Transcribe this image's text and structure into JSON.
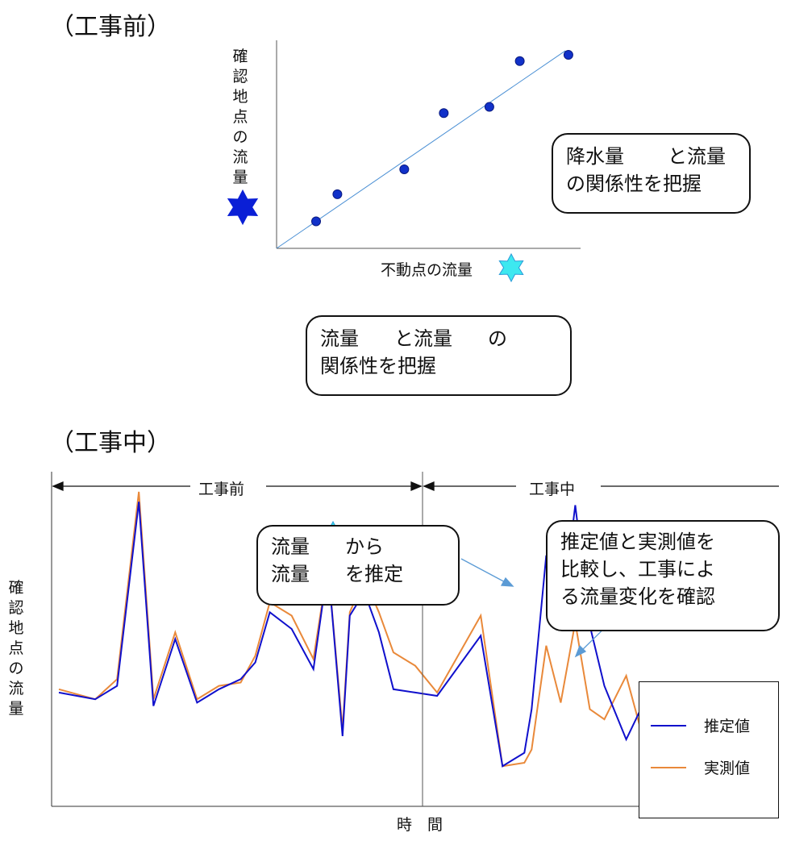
{
  "before": {
    "title": "（工事前）",
    "ylabel": [
      "確",
      "認",
      "地",
      "点",
      "の",
      "流",
      "量"
    ],
    "xlabel": "不動点の流量",
    "callout_rainfall": [
      "降水量",
      "と流量",
      "の関係性を把握"
    ],
    "callout_flow": [
      "流量",
      "と流量",
      "の",
      "関係性を把握"
    ]
  },
  "during": {
    "title": "（工事中）",
    "ylabel": [
      "確",
      "認",
      "地",
      "点",
      "の",
      "流",
      "量"
    ],
    "xlabel": "時　間",
    "period_before": "工事前",
    "period_during": "工事中",
    "callout_estimate": [
      "流量",
      "から",
      "流量",
      "を推定"
    ],
    "callout_compare": [
      "推定値と実測値を",
      "比較し、工事によ",
      "る流量変化を確認"
    ]
  },
  "colors": {
    "estimate": "#1010cc",
    "measured": "#e9893a",
    "star_fixed": "#3de8f0",
    "star_site": "#0a1fd6",
    "rain": "#1aa7e0",
    "fit": "#4a8fd4",
    "point": "#1131c9",
    "arrow": "#5b9bd5"
  },
  "chart_data": [
    {
      "type": "scatter",
      "x": [
        0.13,
        0.2,
        0.42,
        0.55,
        0.7,
        0.8,
        0.96
      ],
      "y": [
        0.13,
        0.26,
        0.38,
        0.65,
        0.68,
        0.9,
        0.93
      ],
      "xlim": [
        0,
        1
      ],
      "ylim": [
        0,
        1
      ],
      "trendline": [
        [
          0,
          0
        ],
        [
          0.95,
          0.95
        ]
      ]
    },
    {
      "type": "line",
      "series": [
        {
          "name": "推定値",
          "values": [
            [
              0.01,
              0.34
            ],
            [
              0.06,
              0.32
            ],
            [
              0.09,
              0.36
            ],
            [
              0.12,
              0.91
            ],
            [
              0.14,
              0.3
            ],
            [
              0.17,
              0.5
            ],
            [
              0.2,
              0.31
            ],
            [
              0.23,
              0.35
            ],
            [
              0.26,
              0.38
            ],
            [
              0.28,
              0.43
            ],
            [
              0.3,
              0.58
            ],
            [
              0.33,
              0.53
            ],
            [
              0.36,
              0.41
            ],
            [
              0.38,
              0.72
            ],
            [
              0.4,
              0.21
            ],
            [
              0.41,
              0.57
            ],
            [
              0.43,
              0.64
            ],
            [
              0.45,
              0.52
            ],
            [
              0.47,
              0.35
            ],
            [
              0.5,
              0.34
            ],
            [
              0.53,
              0.33
            ],
            [
              0.59,
              0.51
            ],
            [
              0.62,
              0.12
            ],
            [
              0.65,
              0.16
            ],
            [
              0.66,
              0.29
            ],
            [
              0.68,
              0.75
            ],
            [
              0.7,
              0.54
            ],
            [
              0.72,
              0.9
            ],
            [
              0.74,
              0.54
            ],
            [
              0.76,
              0.36
            ],
            [
              0.79,
              0.2
            ],
            [
              0.81,
              0.29
            ],
            [
              0.83,
              0.26
            ],
            [
              0.86,
              0.21
            ]
          ]
        },
        {
          "name": "実測値",
          "values": [
            [
              0.01,
              0.35
            ],
            [
              0.06,
              0.32
            ],
            [
              0.09,
              0.38
            ],
            [
              0.12,
              0.94
            ],
            [
              0.14,
              0.32
            ],
            [
              0.17,
              0.52
            ],
            [
              0.2,
              0.32
            ],
            [
              0.23,
              0.36
            ],
            [
              0.26,
              0.37
            ],
            [
              0.28,
              0.45
            ],
            [
              0.3,
              0.61
            ],
            [
              0.33,
              0.57
            ],
            [
              0.36,
              0.44
            ],
            [
              0.38,
              0.72
            ],
            [
              0.4,
              0.23
            ],
            [
              0.41,
              0.58
            ],
            [
              0.43,
              0.68
            ],
            [
              0.45,
              0.58
            ],
            [
              0.47,
              0.46
            ],
            [
              0.5,
              0.42
            ],
            [
              0.53,
              0.34
            ],
            [
              0.59,
              0.57
            ],
            [
              0.62,
              0.12
            ],
            [
              0.65,
              0.13
            ],
            [
              0.66,
              0.17
            ],
            [
              0.68,
              0.48
            ],
            [
              0.7,
              0.31
            ],
            [
              0.72,
              0.55
            ],
            [
              0.74,
              0.29
            ],
            [
              0.76,
              0.26
            ],
            [
              0.79,
              0.39
            ],
            [
              0.81,
              0.23
            ],
            [
              0.83,
              0.21
            ],
            [
              0.86,
              0.17
            ]
          ]
        }
      ]
    }
  ]
}
